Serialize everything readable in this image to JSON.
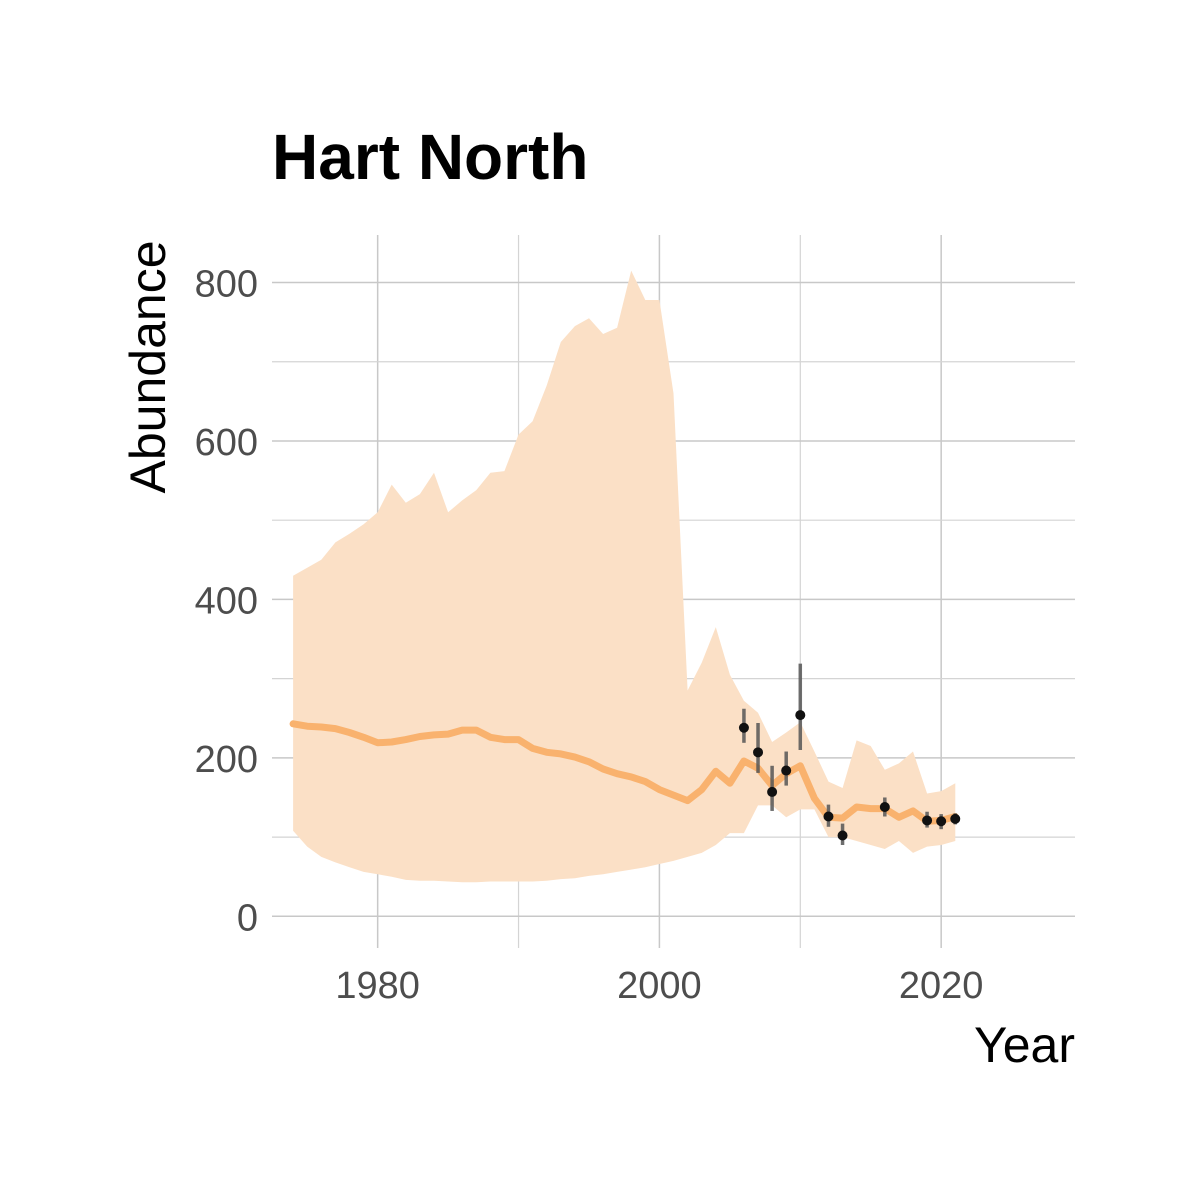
{
  "chart_data": {
    "type": "line",
    "title": "Hart North",
    "xlabel": "Year",
    "ylabel": "Abundance",
    "xlim": [
      1972.5,
      2029.5
    ],
    "ylim": [
      -40,
      860
    ],
    "x_ticks": [
      1980,
      2000,
      2020
    ],
    "y_ticks": [
      0,
      200,
      400,
      600,
      800
    ],
    "grid": true,
    "colors": {
      "fill": "#fbe0c6",
      "line": "#f9b26e",
      "points": "#111111",
      "errorbars": "#555555"
    },
    "series": [
      {
        "type": "line_with_ribbon",
        "x": [
          1974,
          1975,
          1976,
          1977,
          1978,
          1979,
          1980,
          1981,
          1982,
          1983,
          1984,
          1985,
          1986,
          1987,
          1988,
          1989,
          1990,
          1991,
          1992,
          1993,
          1994,
          1995,
          1996,
          1997,
          1998,
          1999,
          2000,
          2001,
          2002,
          2003,
          2004,
          2005,
          2006,
          2007,
          2008,
          2009,
          2010,
          2011,
          2012,
          2013,
          2014,
          2015,
          2016,
          2017,
          2018,
          2019,
          2020,
          2021
        ],
        "y": [
          243,
          240,
          239,
          237,
          232,
          226,
          219,
          220,
          223,
          227,
          229,
          230,
          235,
          235,
          226,
          223,
          223,
          212,
          207,
          205,
          201,
          195,
          186,
          180,
          176,
          170,
          160,
          153,
          146,
          160,
          183,
          168,
          196,
          187,
          165,
          180,
          190,
          149,
          125,
          124,
          138,
          136,
          136,
          125,
          133,
          120,
          121,
          126
        ],
        "lower": [
          108,
          88,
          75,
          68,
          62,
          56,
          53,
          50,
          46,
          45,
          45,
          44,
          43,
          43,
          44,
          44,
          44,
          44,
          45,
          47,
          48,
          51,
          53,
          56,
          59,
          62,
          66,
          70,
          75,
          80,
          90,
          105,
          105,
          140,
          140,
          125,
          135,
          135,
          100,
          100,
          95,
          90,
          85,
          95,
          80,
          88,
          90,
          95
        ],
        "upper": [
          430,
          440,
          450,
          472,
          483,
          495,
          510,
          545,
          522,
          533,
          560,
          510,
          525,
          538,
          560,
          562,
          608,
          625,
          670,
          725,
          745,
          755,
          735,
          743,
          815,
          778,
          778,
          660,
          285,
          320,
          365,
          305,
          272,
          257,
          220,
          232,
          245,
          208,
          170,
          162,
          222,
          215,
          185,
          193,
          208,
          155,
          158,
          168
        ]
      }
    ],
    "observations": {
      "x": [
        2006,
        2007,
        2008,
        2009,
        2010,
        2012,
        2013,
        2016,
        2019,
        2020,
        2021
      ],
      "y": [
        238,
        207,
        157,
        184,
        254,
        126,
        102,
        138,
        121,
        120,
        123
      ],
      "lower": [
        219,
        181,
        133,
        165,
        210,
        113,
        90,
        126,
        112,
        110,
        116
      ],
      "upper": [
        262,
        244,
        190,
        208,
        319,
        141,
        117,
        150,
        132,
        129,
        130
      ]
    }
  }
}
